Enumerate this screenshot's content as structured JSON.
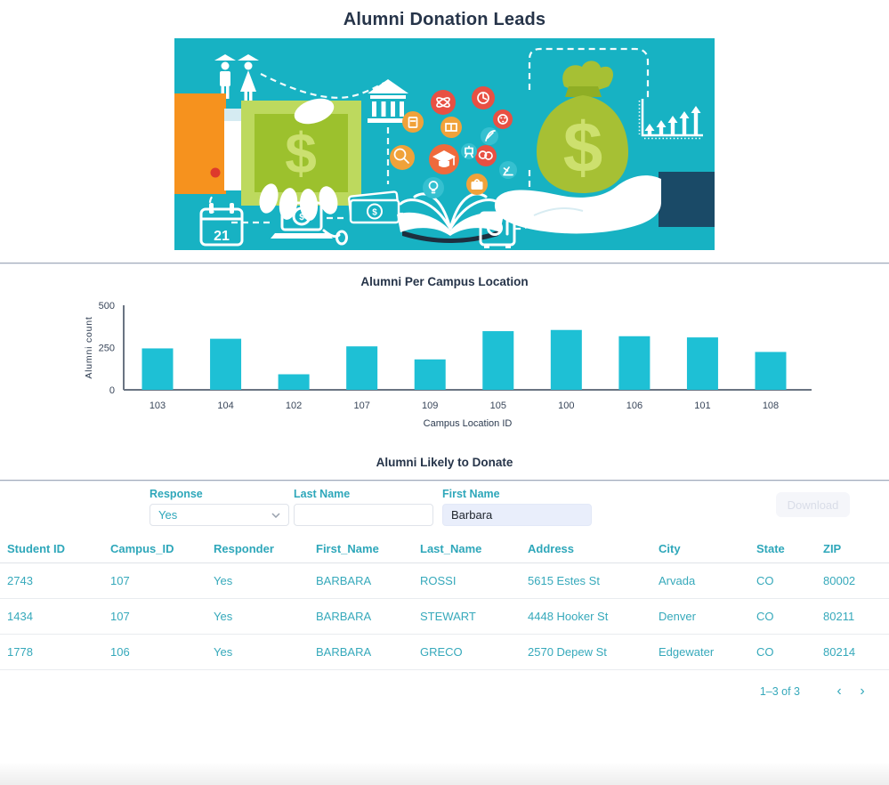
{
  "header": {
    "title": "Alumni Donation Leads"
  },
  "hero": {
    "calendar_day": "21",
    "dollar_sign": "$"
  },
  "chart": {
    "title": "Alumni Per Campus Location"
  },
  "chart_data": {
    "type": "bar",
    "categories": [
      "103",
      "104",
      "102",
      "107",
      "109",
      "105",
      "100",
      "106",
      "101",
      "108"
    ],
    "values": [
      245,
      302,
      92,
      257,
      180,
      347,
      354,
      317,
      310,
      224
    ],
    "title": "Alumni Per Campus Location",
    "xlabel": "Campus Location ID",
    "ylabel": "Alumni count",
    "ylim": [
      0,
      500
    ],
    "yticks": [
      0,
      250,
      500
    ],
    "bar_color": "#1ec0d5",
    "grid": false,
    "legend": false
  },
  "table_section": {
    "title": "Alumni Likely to Donate",
    "filters": {
      "response": {
        "label": "Response",
        "value": "Yes"
      },
      "last_name": {
        "label": "Last Name",
        "value": ""
      },
      "first_name": {
        "label": "First Name",
        "value": "Barbara"
      }
    },
    "download_label": "Download",
    "columns": [
      "Student ID",
      "Campus_ID",
      "Responder",
      "First_Name",
      "Last_Name",
      "Address",
      "City",
      "State",
      "ZIP"
    ],
    "rows": [
      [
        "2743",
        "107",
        "Yes",
        "BARBARA",
        "ROSSI",
        "5615 Estes St",
        "Arvada",
        "CO",
        "80002"
      ],
      [
        "1434",
        "107",
        "Yes",
        "BARBARA",
        "STEWART",
        "4448 Hooker St",
        "Denver",
        "CO",
        "80211"
      ],
      [
        "1778",
        "106",
        "Yes",
        "BARBARA",
        "GRECO",
        "2570 Depew St",
        "Edgewater",
        "CO",
        "80214"
      ]
    ],
    "pagination": {
      "range_label": "1–3 of 3",
      "prev_icon": "‹",
      "next_icon": "›"
    }
  },
  "colors": {
    "accent_teal": "#2ea7ba",
    "bar_teal": "#1ec0d5",
    "hero_background": "#17b2c3",
    "title_navy": "#263449"
  }
}
